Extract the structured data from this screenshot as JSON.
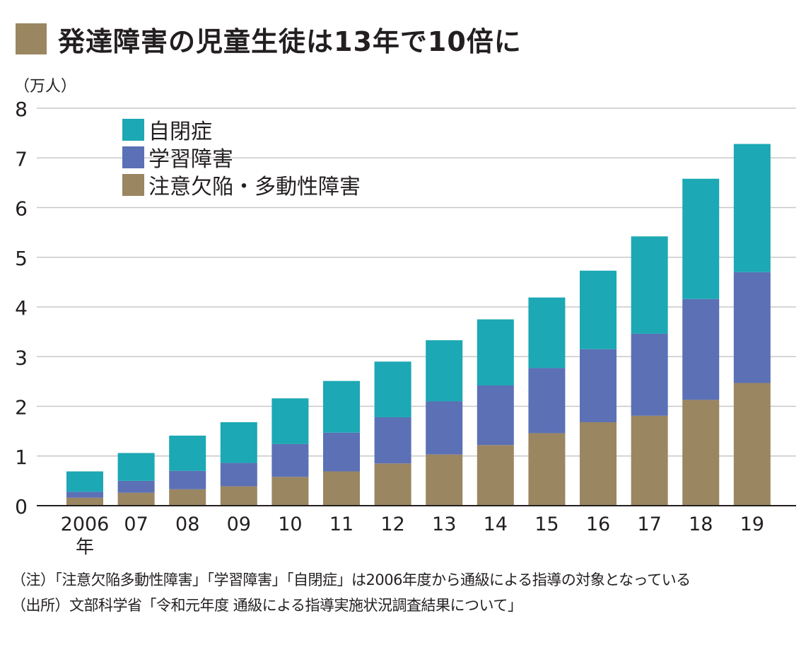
{
  "title": "発達障害の児童生徒は13年で10倍に",
  "unit_label": "（万人）",
  "colors": {
    "title_square": "#9a8660",
    "adhd": "#9a8660",
    "ld": "#5b70b5",
    "autism": "#1ca8b4",
    "grid": "#c8c8c8",
    "axis": "#231f20"
  },
  "chart_data": {
    "type": "bar",
    "stacked": true,
    "categories": [
      "2006",
      "07",
      "08",
      "09",
      "10",
      "11",
      "12",
      "13",
      "14",
      "15",
      "16",
      "17",
      "18",
      "19"
    ],
    "x_year_suffix": "年",
    "ylim": [
      0,
      8
    ],
    "yticks": [
      "0",
      "1",
      "2",
      "3",
      "4",
      "5",
      "6",
      "7",
      "8"
    ],
    "grid": true,
    "legend_position": "top-left",
    "series": [
      {
        "name": "注意欠陥・多動性障害",
        "color": "#9a8660",
        "values": [
          0.16,
          0.26,
          0.33,
          0.39,
          0.58,
          0.69,
          0.85,
          1.03,
          1.22,
          1.46,
          1.68,
          1.81,
          2.13,
          2.47
        ]
      },
      {
        "name": "学習障害",
        "color": "#5b70b5",
        "values": [
          0.12,
          0.24,
          0.37,
          0.47,
          0.66,
          0.78,
          0.93,
          1.07,
          1.2,
          1.31,
          1.47,
          1.65,
          2.03,
          2.23
        ]
      },
      {
        "name": "自閉症",
        "color": "#1ca8b4",
        "values": [
          0.41,
          0.56,
          0.71,
          0.82,
          0.92,
          1.04,
          1.12,
          1.23,
          1.33,
          1.42,
          1.58,
          1.96,
          2.42,
          2.58
        ]
      }
    ],
    "legend_order": [
      "自閉症",
      "学習障害",
      "注意欠陥・多動性障害"
    ]
  },
  "notes": [
    "（注）「注意欠陥多動性障害」「学習障害」「自閉症」は2006年度から通級による指導の対象となっている",
    "（出所）文部科学省「令和元年度 通級による指導実施状況調査結果について」"
  ]
}
